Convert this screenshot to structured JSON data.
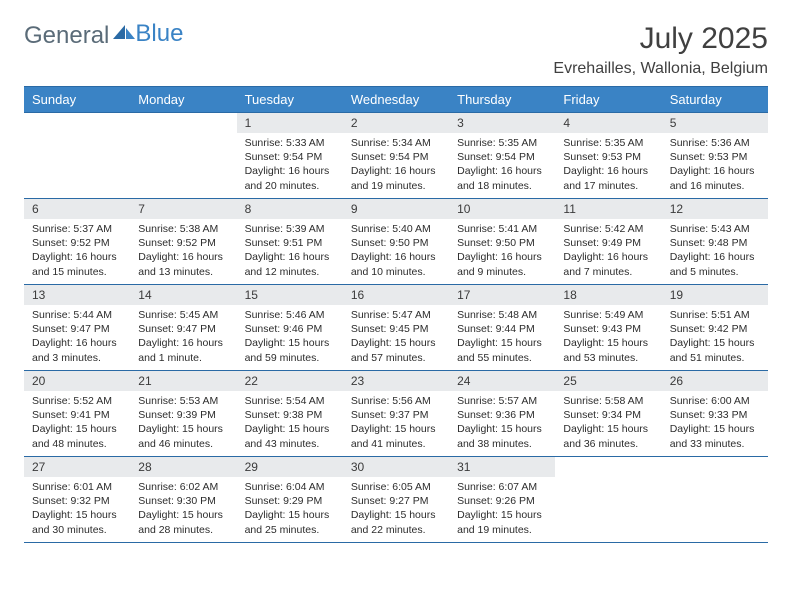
{
  "brand": {
    "part1": "General",
    "part2": "Blue"
  },
  "title": "July 2025",
  "location": "Evrehailles, Wallonia, Belgium",
  "theme": {
    "header_bg": "#3a83c5",
    "header_text": "#ffffff",
    "border": "#2a6aa5",
    "daynum_bg": "#e8eaec",
    "body_text": "#2c2c2c",
    "title_color": "#404040",
    "logo_gray": "#5a6b78",
    "logo_blue": "#3a83c5",
    "page_bg": "#ffffff"
  },
  "day_headers": [
    "Sunday",
    "Monday",
    "Tuesday",
    "Wednesday",
    "Thursday",
    "Friday",
    "Saturday"
  ],
  "weeks": [
    [
      {
        "n": "",
        "sr": "",
        "ss": "",
        "dl": ""
      },
      {
        "n": "",
        "sr": "",
        "ss": "",
        "dl": ""
      },
      {
        "n": "1",
        "sr": "Sunrise: 5:33 AM",
        "ss": "Sunset: 9:54 PM",
        "dl": "Daylight: 16 hours and 20 minutes."
      },
      {
        "n": "2",
        "sr": "Sunrise: 5:34 AM",
        "ss": "Sunset: 9:54 PM",
        "dl": "Daylight: 16 hours and 19 minutes."
      },
      {
        "n": "3",
        "sr": "Sunrise: 5:35 AM",
        "ss": "Sunset: 9:54 PM",
        "dl": "Daylight: 16 hours and 18 minutes."
      },
      {
        "n": "4",
        "sr": "Sunrise: 5:35 AM",
        "ss": "Sunset: 9:53 PM",
        "dl": "Daylight: 16 hours and 17 minutes."
      },
      {
        "n": "5",
        "sr": "Sunrise: 5:36 AM",
        "ss": "Sunset: 9:53 PM",
        "dl": "Daylight: 16 hours and 16 minutes."
      }
    ],
    [
      {
        "n": "6",
        "sr": "Sunrise: 5:37 AM",
        "ss": "Sunset: 9:52 PM",
        "dl": "Daylight: 16 hours and 15 minutes."
      },
      {
        "n": "7",
        "sr": "Sunrise: 5:38 AM",
        "ss": "Sunset: 9:52 PM",
        "dl": "Daylight: 16 hours and 13 minutes."
      },
      {
        "n": "8",
        "sr": "Sunrise: 5:39 AM",
        "ss": "Sunset: 9:51 PM",
        "dl": "Daylight: 16 hours and 12 minutes."
      },
      {
        "n": "9",
        "sr": "Sunrise: 5:40 AM",
        "ss": "Sunset: 9:50 PM",
        "dl": "Daylight: 16 hours and 10 minutes."
      },
      {
        "n": "10",
        "sr": "Sunrise: 5:41 AM",
        "ss": "Sunset: 9:50 PM",
        "dl": "Daylight: 16 hours and 9 minutes."
      },
      {
        "n": "11",
        "sr": "Sunrise: 5:42 AM",
        "ss": "Sunset: 9:49 PM",
        "dl": "Daylight: 16 hours and 7 minutes."
      },
      {
        "n": "12",
        "sr": "Sunrise: 5:43 AM",
        "ss": "Sunset: 9:48 PM",
        "dl": "Daylight: 16 hours and 5 minutes."
      }
    ],
    [
      {
        "n": "13",
        "sr": "Sunrise: 5:44 AM",
        "ss": "Sunset: 9:47 PM",
        "dl": "Daylight: 16 hours and 3 minutes."
      },
      {
        "n": "14",
        "sr": "Sunrise: 5:45 AM",
        "ss": "Sunset: 9:47 PM",
        "dl": "Daylight: 16 hours and 1 minute."
      },
      {
        "n": "15",
        "sr": "Sunrise: 5:46 AM",
        "ss": "Sunset: 9:46 PM",
        "dl": "Daylight: 15 hours and 59 minutes."
      },
      {
        "n": "16",
        "sr": "Sunrise: 5:47 AM",
        "ss": "Sunset: 9:45 PM",
        "dl": "Daylight: 15 hours and 57 minutes."
      },
      {
        "n": "17",
        "sr": "Sunrise: 5:48 AM",
        "ss": "Sunset: 9:44 PM",
        "dl": "Daylight: 15 hours and 55 minutes."
      },
      {
        "n": "18",
        "sr": "Sunrise: 5:49 AM",
        "ss": "Sunset: 9:43 PM",
        "dl": "Daylight: 15 hours and 53 minutes."
      },
      {
        "n": "19",
        "sr": "Sunrise: 5:51 AM",
        "ss": "Sunset: 9:42 PM",
        "dl": "Daylight: 15 hours and 51 minutes."
      }
    ],
    [
      {
        "n": "20",
        "sr": "Sunrise: 5:52 AM",
        "ss": "Sunset: 9:41 PM",
        "dl": "Daylight: 15 hours and 48 minutes."
      },
      {
        "n": "21",
        "sr": "Sunrise: 5:53 AM",
        "ss": "Sunset: 9:39 PM",
        "dl": "Daylight: 15 hours and 46 minutes."
      },
      {
        "n": "22",
        "sr": "Sunrise: 5:54 AM",
        "ss": "Sunset: 9:38 PM",
        "dl": "Daylight: 15 hours and 43 minutes."
      },
      {
        "n": "23",
        "sr": "Sunrise: 5:56 AM",
        "ss": "Sunset: 9:37 PM",
        "dl": "Daylight: 15 hours and 41 minutes."
      },
      {
        "n": "24",
        "sr": "Sunrise: 5:57 AM",
        "ss": "Sunset: 9:36 PM",
        "dl": "Daylight: 15 hours and 38 minutes."
      },
      {
        "n": "25",
        "sr": "Sunrise: 5:58 AM",
        "ss": "Sunset: 9:34 PM",
        "dl": "Daylight: 15 hours and 36 minutes."
      },
      {
        "n": "26",
        "sr": "Sunrise: 6:00 AM",
        "ss": "Sunset: 9:33 PM",
        "dl": "Daylight: 15 hours and 33 minutes."
      }
    ],
    [
      {
        "n": "27",
        "sr": "Sunrise: 6:01 AM",
        "ss": "Sunset: 9:32 PM",
        "dl": "Daylight: 15 hours and 30 minutes."
      },
      {
        "n": "28",
        "sr": "Sunrise: 6:02 AM",
        "ss": "Sunset: 9:30 PM",
        "dl": "Daylight: 15 hours and 28 minutes."
      },
      {
        "n": "29",
        "sr": "Sunrise: 6:04 AM",
        "ss": "Sunset: 9:29 PM",
        "dl": "Daylight: 15 hours and 25 minutes."
      },
      {
        "n": "30",
        "sr": "Sunrise: 6:05 AM",
        "ss": "Sunset: 9:27 PM",
        "dl": "Daylight: 15 hours and 22 minutes."
      },
      {
        "n": "31",
        "sr": "Sunrise: 6:07 AM",
        "ss": "Sunset: 9:26 PM",
        "dl": "Daylight: 15 hours and 19 minutes."
      },
      {
        "n": "",
        "sr": "",
        "ss": "",
        "dl": ""
      },
      {
        "n": "",
        "sr": "",
        "ss": "",
        "dl": ""
      }
    ]
  ]
}
